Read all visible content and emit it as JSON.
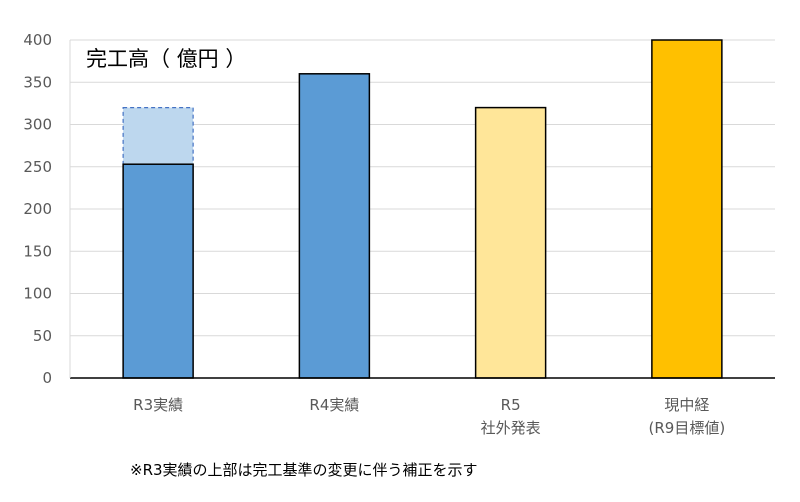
{
  "chart_data": {
    "type": "bar",
    "title": "完工高（ 億円 ）",
    "xlabel": "",
    "ylabel": "",
    "ylim": [
      0,
      400
    ],
    "yticks": [
      0,
      50,
      100,
      150,
      200,
      250,
      300,
      350,
      400
    ],
    "grid": true,
    "categories": [
      [
        "R3実績"
      ],
      [
        "R4実績"
      ],
      [
        "R5",
        "社外発表"
      ],
      [
        "現中経",
        "(R9目標値)"
      ]
    ],
    "values": [
      253,
      360,
      320,
      400
    ],
    "adjusted_upper": {
      "category_index": 0,
      "from": 253,
      "to": 320
    },
    "colors": [
      "#5b9bd5",
      "#5b9bd5",
      "#ffe699",
      "#ffc000"
    ],
    "adjusted_color": "#bdd7ee",
    "adjusted_border": "#4472c4"
  },
  "footnote": "※R3実績の上部は完工基準の変更に伴う補正を示す"
}
